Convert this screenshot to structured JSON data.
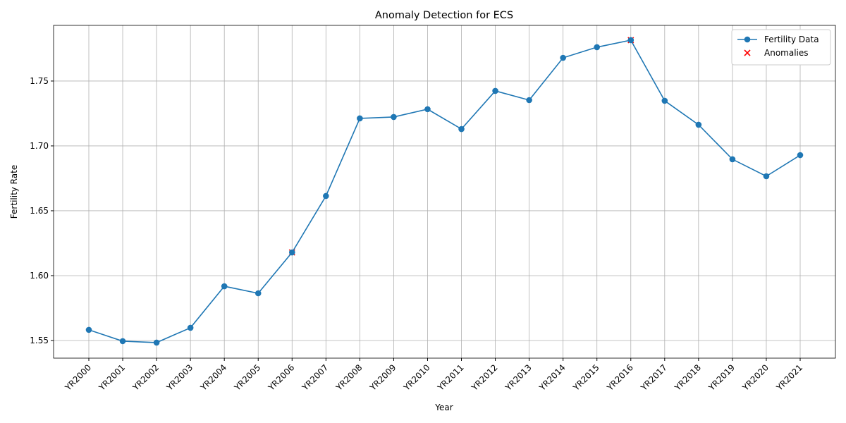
{
  "chart_data": {
    "type": "line",
    "title": "Anomaly Detection for ECS",
    "xlabel": "Year",
    "ylabel": "Fertility Rate",
    "categories": [
      "YR2000",
      "YR2001",
      "YR2002",
      "YR2003",
      "YR2004",
      "YR2005",
      "YR2006",
      "YR2007",
      "YR2008",
      "YR2009",
      "YR2010",
      "YR2011",
      "YR2012",
      "YR2013",
      "YR2014",
      "YR2015",
      "YR2016",
      "YR2017",
      "YR2018",
      "YR2019",
      "YR2020",
      "YR2021"
    ],
    "series": [
      {
        "name": "Fertility Data",
        "color": "#1f77b4",
        "marker": "o",
        "values": [
          1.5582,
          1.5495,
          1.5484,
          1.5598,
          1.5918,
          1.5864,
          1.6179,
          1.6614,
          1.7212,
          1.7223,
          1.7283,
          1.713,
          1.7424,
          1.7353,
          1.7679,
          1.7761,
          1.7815,
          1.7348,
          1.7163,
          1.6897,
          1.6766,
          1.6929
        ]
      },
      {
        "name": "Anomalies",
        "color": "#ff0000",
        "marker": "x",
        "values": [
          null,
          null,
          null,
          null,
          null,
          null,
          1.6179,
          null,
          null,
          null,
          null,
          null,
          null,
          null,
          null,
          null,
          1.7815,
          null,
          null,
          null,
          null,
          null
        ]
      }
    ],
    "ylim": [
      1.5364,
      1.7929
    ],
    "yticks": [
      1.55,
      {
        "value": 1.6,
        "label": "1.60"
      },
      1.65,
      {
        "value": 1.7,
        "label": "1.70"
      },
      1.75
    ],
    "grid": true,
    "legend": "upper right"
  }
}
